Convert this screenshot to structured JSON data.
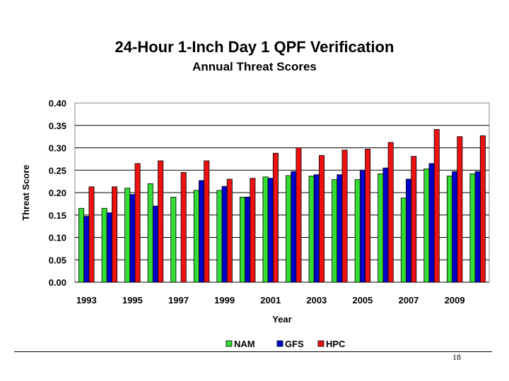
{
  "page": {
    "number": "18"
  },
  "chart_data": {
    "type": "bar",
    "title": "24-Hour 1-Inch Day 1 QPF Verification",
    "subtitle": "Annual Threat Scores",
    "xlabel": "Year",
    "ylabel": "Threat Score",
    "ylim": [
      0,
      0.4
    ],
    "yticks": [
      "0.00",
      "0.05",
      "0.10",
      "0.15",
      "0.20",
      "0.25",
      "0.30",
      "0.35",
      "0.40"
    ],
    "categories": [
      "1993",
      "1994",
      "1995",
      "1996",
      "1997",
      "1998",
      "1999",
      "2000",
      "2001",
      "2002",
      "2003",
      "2004",
      "2005",
      "2006",
      "2007",
      "2008",
      "2009",
      "2010"
    ],
    "xtick_labels": [
      "1993",
      "1995",
      "1997",
      "1999",
      "2001",
      "2003",
      "2005",
      "2007",
      "2009"
    ],
    "grid": true,
    "legend_position": "bottom",
    "series": [
      {
        "name": "NAM",
        "color": "#33dd33",
        "values": [
          0.165,
          0.165,
          0.21,
          0.22,
          0.19,
          0.205,
          0.205,
          0.19,
          0.235,
          0.238,
          0.237,
          0.229,
          0.229,
          0.242,
          0.188,
          0.253,
          0.237,
          0.242
        ]
      },
      {
        "name": "GFS",
        "color": "#0000cc",
        "values": [
          0.147,
          0.155,
          0.196,
          0.17,
          null,
          0.227,
          0.214,
          0.19,
          0.232,
          0.247,
          0.24,
          0.24,
          0.25,
          0.255,
          0.23,
          0.265,
          0.247,
          0.247
        ]
      },
      {
        "name": "HPC",
        "color": "#ee1111",
        "values": [
          0.213,
          0.213,
          0.265,
          0.271,
          0.245,
          0.271,
          0.23,
          0.232,
          0.288,
          0.3,
          0.283,
          0.295,
          0.297,
          0.312,
          0.281,
          0.341,
          0.325,
          0.327
        ]
      }
    ]
  }
}
